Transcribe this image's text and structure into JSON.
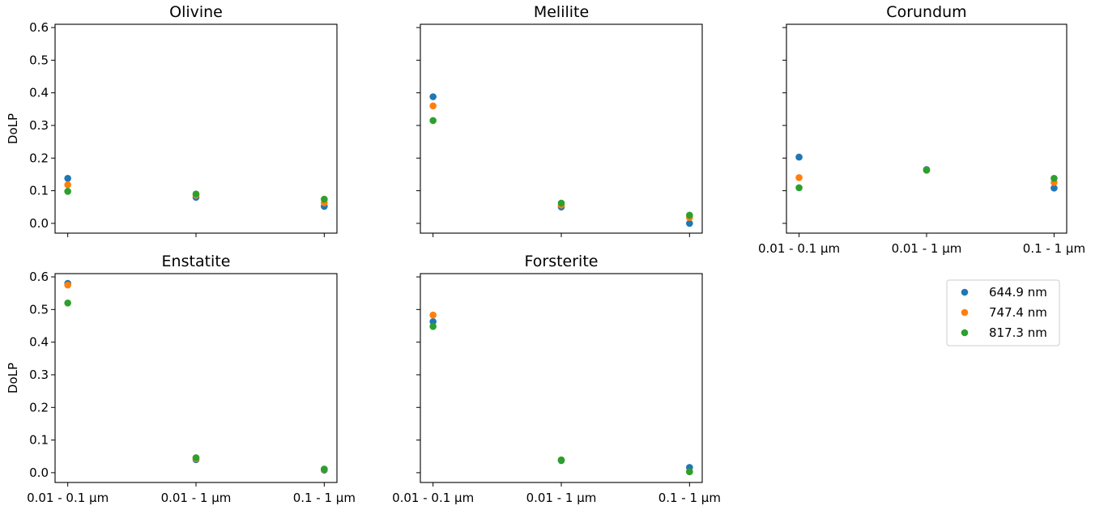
{
  "figure": {
    "ylabel": "DoLP",
    "x_tick_labels": [
      "0.01 - 0.1 μm",
      "0.01 - 1 μm",
      "0.1 - 1 μm"
    ],
    "y_tick_labels": [
      "0.0",
      "0.1",
      "0.2",
      "0.3",
      "0.4",
      "0.5",
      "0.6"
    ]
  },
  "legend": {
    "placement": "right, below top-right panel",
    "entries": [
      {
        "label": "644.9 nm",
        "color": "#1f77b4"
      },
      {
        "label": "747.4 nm",
        "color": "#ff7f0e"
      },
      {
        "label": "817.3 nm",
        "color": "#2ca02c"
      }
    ]
  },
  "chart_data": [
    {
      "type": "scatter",
      "title": "Olivine",
      "categories": [
        "0.01 - 0.1 μm",
        "0.01 - 1 μm",
        "0.1 - 1 μm"
      ],
      "ylabel": "DoLP",
      "ylim": [
        -0.03,
        0.61
      ],
      "series": [
        {
          "name": "644.9 nm",
          "color": "#1f77b4",
          "values": [
            0.138,
            0.08,
            0.052
          ]
        },
        {
          "name": "747.4 nm",
          "color": "#ff7f0e",
          "values": [
            0.118,
            0.086,
            0.063
          ]
        },
        {
          "name": "817.3 nm",
          "color": "#2ca02c",
          "values": [
            0.098,
            0.09,
            0.074
          ]
        }
      ]
    },
    {
      "type": "scatter",
      "title": "Melilite",
      "categories": [
        "0.01 - 0.1 μm",
        "0.01 - 1 μm",
        "0.1 - 1 μm"
      ],
      "ylim": [
        -0.03,
        0.61
      ],
      "series": [
        {
          "name": "644.9 nm",
          "color": "#1f77b4",
          "values": [
            0.388,
            0.05,
            0.0
          ]
        },
        {
          "name": "747.4 nm",
          "color": "#ff7f0e",
          "values": [
            0.36,
            0.056,
            0.018
          ]
        },
        {
          "name": "817.3 nm",
          "color": "#2ca02c",
          "values": [
            0.315,
            0.062,
            0.025
          ]
        }
      ]
    },
    {
      "type": "scatter",
      "title": "Corundum",
      "categories": [
        "0.01 - 0.1 μm",
        "0.01 - 1 μm",
        "0.1 - 1 μm"
      ],
      "ylim": [
        -0.03,
        0.61
      ],
      "series": [
        {
          "name": "644.9 nm",
          "color": "#1f77b4",
          "values": [
            0.203,
            0.165,
            0.108
          ]
        },
        {
          "name": "747.4 nm",
          "color": "#ff7f0e",
          "values": [
            0.14,
            0.163,
            0.125
          ]
        },
        {
          "name": "817.3 nm",
          "color": "#2ca02c",
          "values": [
            0.109,
            0.163,
            0.138
          ]
        }
      ]
    },
    {
      "type": "scatter",
      "title": "Enstatite",
      "categories": [
        "0.01 - 0.1 μm",
        "0.01 - 1 μm",
        "0.1 - 1 μm"
      ],
      "ylabel": "DoLP",
      "ylim": [
        -0.03,
        0.61
      ],
      "series": [
        {
          "name": "644.9 nm",
          "color": "#1f77b4",
          "values": [
            0.58,
            0.04,
            0.008
          ]
        },
        {
          "name": "747.4 nm",
          "color": "#ff7f0e",
          "values": [
            0.575,
            0.043,
            0.01
          ]
        },
        {
          "name": "817.3 nm",
          "color": "#2ca02c",
          "values": [
            0.52,
            0.046,
            0.011
          ]
        }
      ]
    },
    {
      "type": "scatter",
      "title": "Forsterite",
      "categories": [
        "0.01 - 0.1 μm",
        "0.01 - 1 μm",
        "0.1 - 1 μm"
      ],
      "ylim": [
        -0.03,
        0.61
      ],
      "series": [
        {
          "name": "644.9 nm",
          "color": "#1f77b4",
          "values": [
            0.463,
            0.037,
            0.016
          ]
        },
        {
          "name": "747.4 nm",
          "color": "#ff7f0e",
          "values": [
            0.483,
            0.039,
            0.003
          ]
        },
        {
          "name": "817.3 nm",
          "color": "#2ca02c",
          "values": [
            0.448,
            0.039,
            0.003
          ]
        }
      ]
    }
  ]
}
